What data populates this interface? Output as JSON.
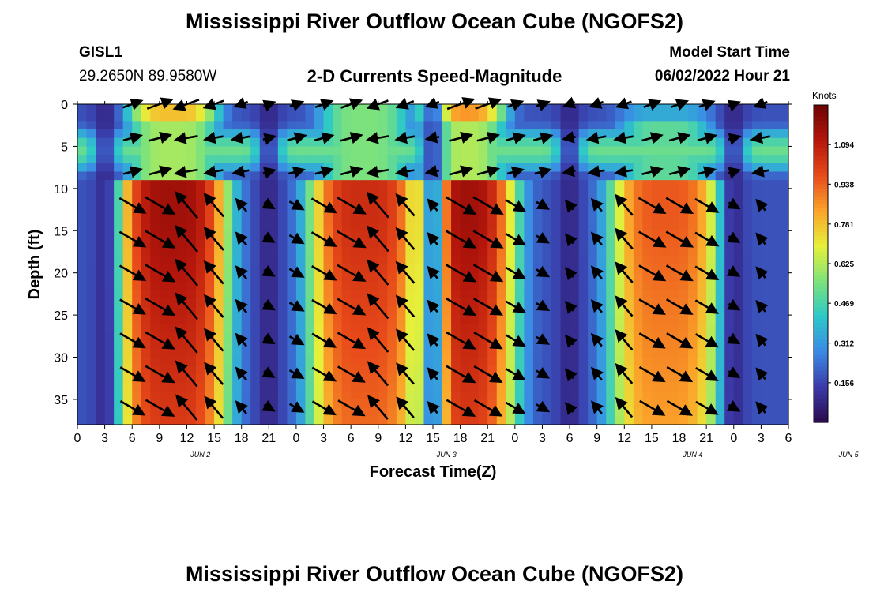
{
  "header": {
    "title": "Mississippi River Outflow Ocean Cube (NGOFS2)",
    "station": "GISL1",
    "coords": "29.2650N  89.9580W",
    "subtitle": "2-D Currents Speed-Magnitude",
    "model_start_label": "Model Start Time",
    "model_start_value": "06/02/2022 Hour 21"
  },
  "footer": {
    "title": "Mississippi River Outflow Ocean Cube (NGOFS2)"
  },
  "chart_data": {
    "type": "heatmap",
    "xlabel": "Forecast Time(Z)",
    "ylabel": "Depth (ft)",
    "x_ticks": [
      "0",
      "3",
      "6",
      "9",
      "12",
      "15",
      "18",
      "21",
      "0",
      "3",
      "6",
      "9",
      "12",
      "15",
      "18",
      "21",
      "0",
      "3",
      "6",
      "9",
      "12",
      "15",
      "18",
      "21",
      "0",
      "3",
      "6"
    ],
    "day_labels": [
      {
        "text": "JUN 2",
        "tick_index": 4.5
      },
      {
        "text": "JUN 3",
        "tick_index": 13.5
      },
      {
        "text": "JUN 4",
        "tick_index": 22.5
      },
      {
        "text": "JUN 5",
        "tick_index": 28.2
      }
    ],
    "y_ticks": [
      0,
      5,
      10,
      15,
      20,
      25,
      30,
      35
    ],
    "ylim": [
      0,
      38
    ],
    "y_inverted": true,
    "x_range_hours": [
      0,
      78
    ],
    "colorbar": {
      "unit": "Knots",
      "ticks": [
        "0.156",
        "0.312",
        "0.469",
        "0.625",
        "0.781",
        "0.938",
        "1.094"
      ],
      "range": [
        0,
        1.25
      ],
      "colors": [
        "#2a0a4e",
        "#3a3aa8",
        "#3b8ae6",
        "#2cc8c8",
        "#7fe37a",
        "#e6f03a",
        "#fba22a",
        "#e84a1a",
        "#b4160c",
        "#6c0303"
      ]
    },
    "speed_peaks": [
      {
        "center_hour": 10.5,
        "shallow_max": 0.78,
        "deep_max": 1.15
      },
      {
        "center_hour": 31.5,
        "shallow_max": 0.55,
        "deep_max": 1.05
      },
      {
        "center_hour": 42.0,
        "shallow_max": 0.85,
        "deep_max": 1.15
      },
      {
        "center_hour": 64.5,
        "shallow_max": 0.35,
        "deep_max": 0.95
      }
    ],
    "slack_hours": [
      3.0,
      21.0,
      39.0,
      54.0,
      72.0
    ],
    "vector_rows_ft": [
      0,
      4,
      8,
      12,
      16,
      20,
      24,
      28,
      32,
      36
    ]
  }
}
